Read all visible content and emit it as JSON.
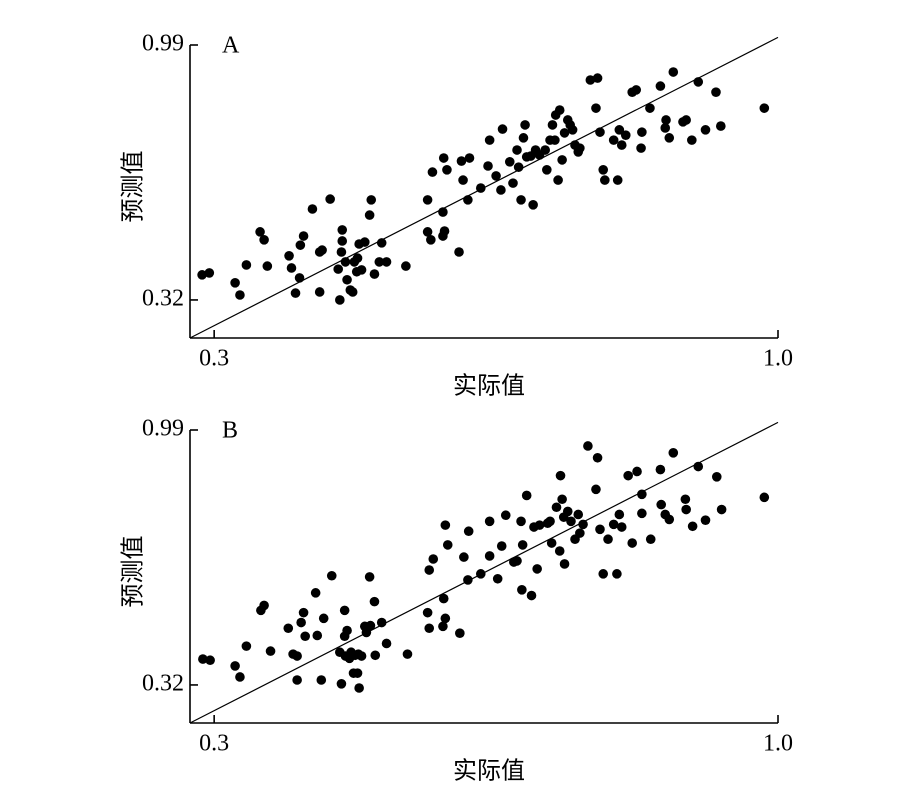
{
  "chart_data": [
    {
      "type": "scatter",
      "panel_label": "A",
      "x_label": "实际值",
      "y_label": "预测值",
      "color": "#000000",
      "xlim": [
        0.27,
        1.0
      ],
      "ylim": [
        0.22,
        0.99
      ],
      "xticks": [
        0.3,
        {
          "value": 1,
          "label": "1.0"
        }
      ],
      "yticks": [
        0.32,
        0.99
      ],
      "fit_line": {
        "x": [
          0.27,
          1.0
        ],
        "y": [
          0.22,
          1.01
        ]
      },
      "x": [
        0.285,
        0.294,
        0.326,
        0.332,
        0.34,
        0.357,
        0.362,
        0.366,
        0.393,
        0.396,
        0.401,
        0.406,
        0.407,
        0.411,
        0.422,
        0.431,
        0.431,
        0.434,
        0.444,
        0.454,
        0.456,
        0.458,
        0.459,
        0.459,
        0.463,
        0.465,
        0.469,
        0.472,
        0.474,
        0.477,
        0.478,
        0.48,
        0.483,
        0.487,
        0.493,
        0.495,
        0.499,
        0.505,
        0.508,
        0.514,
        0.538,
        0.565,
        0.565,
        0.569,
        0.571,
        0.584,
        0.584,
        0.585,
        0.586,
        0.589,
        0.604,
        0.607,
        0.609,
        0.615,
        0.617,
        0.631,
        0.64,
        0.642,
        0.65,
        0.656,
        0.658,
        0.667,
        0.671,
        0.676,
        0.678,
        0.681,
        0.684,
        0.686,
        0.688,
        0.693,
        0.696,
        0.699,
        0.704,
        0.711,
        0.713,
        0.717,
        0.72,
        0.723,
        0.724,
        0.727,
        0.729,
        0.732,
        0.735,
        0.739,
        0.742,
        0.745,
        0.748,
        0.752,
        0.754,
        0.767,
        0.774,
        0.776,
        0.779,
        0.783,
        0.785,
        0.796,
        0.801,
        0.803,
        0.806,
        0.811,
        0.819,
        0.824,
        0.83,
        0.831,
        0.841,
        0.854,
        0.86,
        0.861,
        0.865,
        0.87,
        0.882,
        0.886,
        0.893,
        0.901,
        0.91,
        0.923,
        0.929,
        0.983
      ],
      "values": [
        0.386,
        0.391,
        0.365,
        0.333,
        0.412,
        0.499,
        0.478,
        0.409,
        0.436,
        0.404,
        0.338,
        0.378,
        0.464,
        0.488,
        0.559,
        0.446,
        0.341,
        0.451,
        0.585,
        0.401,
        0.32,
        0.446,
        0.475,
        0.504,
        0.42,
        0.373,
        0.346,
        0.341,
        0.42,
        0.394,
        0.43,
        0.467,
        0.399,
        0.472,
        0.543,
        0.583,
        0.388,
        0.42,
        0.47,
        0.42,
        0.409,
        0.583,
        0.499,
        0.478,
        0.656,
        0.551,
        0.488,
        0.693,
        0.501,
        0.662,
        0.446,
        0.685,
        0.635,
        0.583,
        0.693,
        0.614,
        0.672,
        0.74,
        0.646,
        0.609,
        0.769,
        0.683,
        0.627,
        0.714,
        0.669,
        0.583,
        0.746,
        0.78,
        0.696,
        0.698,
        0.57,
        0.714,
        0.701,
        0.714,
        0.662,
        0.74,
        0.78,
        0.74,
        0.806,
        0.635,
        0.819,
        0.688,
        0.759,
        0.793,
        0.78,
        0.767,
        0.727,
        0.709,
        0.719,
        0.898,
        0.824,
        0.903,
        0.761,
        0.662,
        0.635,
        0.74,
        0.635,
        0.767,
        0.727,
        0.753,
        0.866,
        0.872,
        0.719,
        0.761,
        0.824,
        0.882,
        0.772,
        0.793,
        0.746,
        0.919,
        0.788,
        0.793,
        0.74,
        0.893,
        0.767,
        0.866,
        0.777,
        0.824
      ]
    },
    {
      "type": "scatter",
      "panel_label": "B",
      "x_label": "实际值",
      "y_label": "预测值",
      "color": "#000000",
      "xlim": [
        0.27,
        1.0
      ],
      "ylim": [
        0.22,
        0.99
      ],
      "xticks": [
        0.3,
        {
          "value": 1,
          "label": "1.0"
        }
      ],
      "yticks": [
        0.32,
        0.99
      ],
      "fit_line": {
        "x": [
          0.27,
          1.0
        ],
        "y": [
          0.22,
          1.01
        ]
      },
      "x": [
        0.286,
        0.295,
        0.326,
        0.332,
        0.34,
        0.358,
        0.362,
        0.37,
        0.392,
        0.398,
        0.403,
        0.403,
        0.408,
        0.411,
        0.413,
        0.426,
        0.428,
        0.433,
        0.436,
        0.446,
        0.456,
        0.458,
        0.462,
        0.462,
        0.463,
        0.465,
        0.468,
        0.47,
        0.473,
        0.475,
        0.478,
        0.479,
        0.48,
        0.483,
        0.487,
        0.489,
        0.493,
        0.494,
        0.499,
        0.5,
        0.508,
        0.514,
        0.54,
        0.565,
        0.567,
        0.567,
        0.572,
        0.584,
        0.585,
        0.587,
        0.587,
        0.59,
        0.605,
        0.61,
        0.615,
        0.616,
        0.631,
        0.642,
        0.642,
        0.652,
        0.657,
        0.662,
        0.672,
        0.676,
        0.681,
        0.682,
        0.683,
        0.688,
        0.694,
        0.697,
        0.701,
        0.704,
        0.714,
        0.717,
        0.719,
        0.725,
        0.729,
        0.73,
        0.732,
        0.734,
        0.735,
        0.739,
        0.743,
        0.748,
        0.752,
        0.754,
        0.758,
        0.764,
        0.774,
        0.776,
        0.779,
        0.783,
        0.789,
        0.796,
        0.8,
        0.803,
        0.806,
        0.814,
        0.819,
        0.825,
        0.831,
        0.831,
        0.842,
        0.854,
        0.855,
        0.86,
        0.865,
        0.87,
        0.885,
        0.886,
        0.894,
        0.901,
        0.91,
        0.924,
        0.93,
        0.983
      ],
      "values": [
        0.388,
        0.385,
        0.37,
        0.341,
        0.422,
        0.516,
        0.529,
        0.409,
        0.469,
        0.401,
        0.396,
        0.333,
        0.484,
        0.51,
        0.448,
        0.562,
        0.45,
        0.333,
        0.495,
        0.607,
        0.406,
        0.323,
        0.516,
        0.448,
        0.396,
        0.463,
        0.39,
        0.406,
        0.351,
        0.398,
        0.351,
        0.401,
        0.312,
        0.396,
        0.474,
        0.458,
        0.604,
        0.476,
        0.539,
        0.398,
        0.484,
        0.429,
        0.401,
        0.51,
        0.622,
        0.469,
        0.651,
        0.474,
        0.547,
        0.74,
        0.495,
        0.688,
        0.456,
        0.656,
        0.596,
        0.724,
        0.612,
        0.659,
        0.75,
        0.599,
        0.685,
        0.766,
        0.643,
        0.646,
        0.75,
        0.57,
        0.688,
        0.818,
        0.555,
        0.735,
        0.625,
        0.74,
        0.745,
        0.75,
        0.693,
        0.787,
        0.672,
        0.87,
        0.808,
        0.761,
        0.638,
        0.776,
        0.75,
        0.703,
        0.768,
        0.719,
        0.742,
        0.948,
        0.834,
        0.917,
        0.729,
        0.612,
        0.703,
        0.742,
        0.612,
        0.768,
        0.735,
        0.87,
        0.693,
        0.881,
        0.771,
        0.821,
        0.703,
        0.886,
        0.794,
        0.768,
        0.755,
        0.93,
        0.808,
        0.781,
        0.737,
        0.894,
        0.753,
        0.867,
        0.781,
        0.813
      ]
    }
  ]
}
